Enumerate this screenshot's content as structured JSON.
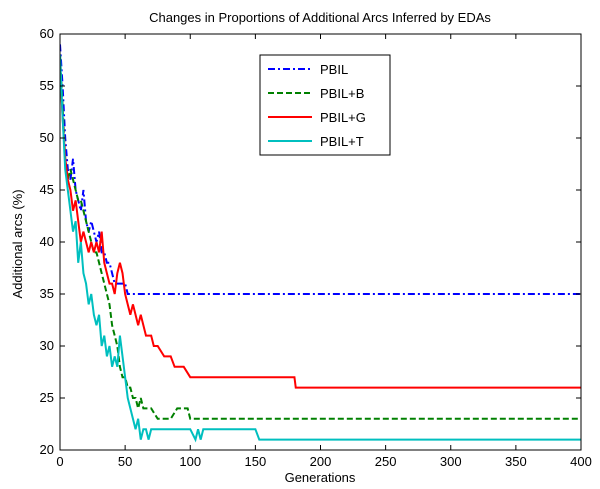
{
  "chart_data": {
    "type": "line",
    "title": "Changes in Proportions of Additional Arcs Inferred by EDAs",
    "xlabel": "Generations",
    "ylabel": "Additional arcs (%)",
    "xlim": [
      0,
      400
    ],
    "ylim": [
      20,
      60
    ],
    "xticks": [
      0,
      50,
      100,
      150,
      200,
      250,
      300,
      350,
      400
    ],
    "yticks": [
      20,
      25,
      30,
      35,
      40,
      45,
      50,
      55,
      60
    ],
    "grid": false,
    "legend_position": "top-center",
    "series": [
      {
        "name": "PBIL",
        "color": "#0000ff",
        "dash": "dashdot",
        "points": [
          [
            0,
            59
          ],
          [
            2,
            55
          ],
          [
            4,
            50
          ],
          [
            6,
            47
          ],
          [
            8,
            46
          ],
          [
            10,
            48
          ],
          [
            12,
            45
          ],
          [
            14,
            44
          ],
          [
            16,
            43
          ],
          [
            18,
            45
          ],
          [
            20,
            42
          ],
          [
            22,
            41
          ],
          [
            24,
            42
          ],
          [
            26,
            41
          ],
          [
            28,
            40
          ],
          [
            30,
            41
          ],
          [
            32,
            39
          ],
          [
            34,
            39
          ],
          [
            36,
            38
          ],
          [
            38,
            38
          ],
          [
            40,
            37
          ],
          [
            42,
            36
          ],
          [
            44,
            36
          ],
          [
            46,
            36
          ],
          [
            48,
            36
          ],
          [
            50,
            36
          ],
          [
            52,
            35
          ],
          [
            55,
            35
          ],
          [
            100,
            35
          ],
          [
            200,
            35
          ],
          [
            300,
            35
          ],
          [
            400,
            35
          ]
        ]
      },
      {
        "name": "PBIL+B",
        "color": "#008000",
        "dash": "dashed",
        "points": [
          [
            0,
            58
          ],
          [
            2,
            53
          ],
          [
            4,
            48
          ],
          [
            6,
            46
          ],
          [
            8,
            47
          ],
          [
            10,
            46
          ],
          [
            12,
            45
          ],
          [
            14,
            44
          ],
          [
            16,
            44
          ],
          [
            18,
            43
          ],
          [
            20,
            42
          ],
          [
            22,
            41
          ],
          [
            24,
            40
          ],
          [
            26,
            39
          ],
          [
            28,
            39
          ],
          [
            30,
            38
          ],
          [
            32,
            37
          ],
          [
            34,
            36
          ],
          [
            36,
            35
          ],
          [
            38,
            34
          ],
          [
            40,
            32
          ],
          [
            42,
            31
          ],
          [
            44,
            30
          ],
          [
            46,
            28
          ],
          [
            48,
            27
          ],
          [
            50,
            27
          ],
          [
            52,
            26
          ],
          [
            54,
            26
          ],
          [
            56,
            25
          ],
          [
            58,
            25
          ],
          [
            60,
            24
          ],
          [
            62,
            25
          ],
          [
            64,
            24
          ],
          [
            66,
            24
          ],
          [
            70,
            24
          ],
          [
            75,
            23
          ],
          [
            80,
            23
          ],
          [
            85,
            23
          ],
          [
            90,
            24
          ],
          [
            95,
            24
          ],
          [
            98,
            24
          ],
          [
            100,
            23
          ],
          [
            150,
            23
          ],
          [
            200,
            23
          ],
          [
            300,
            23
          ],
          [
            400,
            23
          ]
        ]
      },
      {
        "name": "PBIL+G",
        "color": "#ff0000",
        "dash": "solid",
        "points": [
          [
            0,
            57
          ],
          [
            2,
            52
          ],
          [
            4,
            48
          ],
          [
            6,
            46
          ],
          [
            8,
            45
          ],
          [
            10,
            43
          ],
          [
            12,
            44
          ],
          [
            14,
            42
          ],
          [
            16,
            40
          ],
          [
            18,
            41
          ],
          [
            20,
            40
          ],
          [
            22,
            39
          ],
          [
            24,
            40
          ],
          [
            26,
            39
          ],
          [
            28,
            40
          ],
          [
            30,
            39
          ],
          [
            32,
            41
          ],
          [
            34,
            38
          ],
          [
            36,
            37
          ],
          [
            38,
            36
          ],
          [
            40,
            36
          ],
          [
            42,
            35
          ],
          [
            44,
            37
          ],
          [
            46,
            38
          ],
          [
            48,
            37
          ],
          [
            50,
            35
          ],
          [
            52,
            34
          ],
          [
            54,
            33
          ],
          [
            56,
            34
          ],
          [
            58,
            33
          ],
          [
            60,
            32
          ],
          [
            62,
            33
          ],
          [
            64,
            32
          ],
          [
            66,
            31
          ],
          [
            70,
            31
          ],
          [
            72,
            30
          ],
          [
            75,
            30
          ],
          [
            80,
            29
          ],
          [
            85,
            29
          ],
          [
            88,
            28
          ],
          [
            95,
            28
          ],
          [
            100,
            27
          ],
          [
            150,
            27
          ],
          [
            180,
            27
          ],
          [
            181,
            26
          ],
          [
            250,
            26
          ],
          [
            300,
            26
          ],
          [
            400,
            26
          ]
        ]
      },
      {
        "name": "PBIL+T",
        "color": "#00bfbf",
        "dash": "solid",
        "points": [
          [
            0,
            58
          ],
          [
            2,
            52
          ],
          [
            4,
            47
          ],
          [
            6,
            45
          ],
          [
            8,
            43
          ],
          [
            10,
            41
          ],
          [
            12,
            42
          ],
          [
            14,
            38
          ],
          [
            16,
            40
          ],
          [
            18,
            37
          ],
          [
            20,
            36
          ],
          [
            22,
            34
          ],
          [
            24,
            35
          ],
          [
            26,
            33
          ],
          [
            28,
            32
          ],
          [
            30,
            33
          ],
          [
            32,
            30
          ],
          [
            34,
            31
          ],
          [
            36,
            29
          ],
          [
            38,
            30
          ],
          [
            40,
            28
          ],
          [
            42,
            29
          ],
          [
            44,
            28
          ],
          [
            46,
            31
          ],
          [
            48,
            29
          ],
          [
            50,
            27
          ],
          [
            52,
            25
          ],
          [
            54,
            24
          ],
          [
            56,
            23
          ],
          [
            58,
            22
          ],
          [
            60,
            23
          ],
          [
            62,
            21
          ],
          [
            64,
            22
          ],
          [
            66,
            22
          ],
          [
            68,
            21
          ],
          [
            70,
            22
          ],
          [
            75,
            22
          ],
          [
            80,
            22
          ],
          [
            85,
            22
          ],
          [
            90,
            22
          ],
          [
            100,
            22
          ],
          [
            104,
            21
          ],
          [
            106,
            22
          ],
          [
            108,
            21
          ],
          [
            110,
            22
          ],
          [
            120,
            22
          ],
          [
            150,
            22
          ],
          [
            153,
            21
          ],
          [
            200,
            21
          ],
          [
            300,
            21
          ],
          [
            400,
            21
          ]
        ]
      }
    ]
  }
}
